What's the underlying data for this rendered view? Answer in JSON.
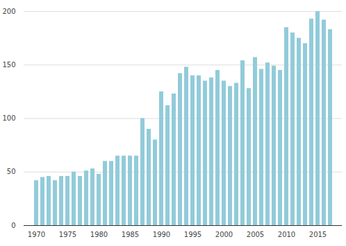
{
  "chart_data": {
    "type": "bar",
    "categories": [
      1970,
      1971,
      1972,
      1973,
      1974,
      1975,
      1976,
      1977,
      1978,
      1979,
      1980,
      1981,
      1982,
      1983,
      1984,
      1985,
      1986,
      1987,
      1988,
      1989,
      1990,
      1991,
      1992,
      1993,
      1994,
      1995,
      1996,
      1997,
      1998,
      1999,
      2000,
      2001,
      2002,
      2003,
      2004,
      2005,
      2006,
      2007,
      2008,
      2009,
      2010,
      2011,
      2012,
      2013,
      2014,
      2015,
      2016,
      2017
    ],
    "values": [
      42,
      45,
      46,
      42,
      46,
      46,
      50,
      46,
      51,
      53,
      48,
      60,
      60,
      65,
      65,
      65,
      65,
      100,
      90,
      80,
      125,
      112,
      123,
      142,
      148,
      140,
      140,
      135,
      138,
      145,
      135,
      130,
      133,
      154,
      128,
      157,
      146,
      152,
      149,
      145,
      185,
      180,
      175,
      170,
      193,
      200,
      192,
      183
    ],
    "color": "#92cbda",
    "xticks": [
      1970,
      1975,
      1980,
      1985,
      1990,
      1995,
      2000,
      2005,
      2010,
      2015
    ],
    "ylim": [
      0,
      200
    ],
    "yticks": [
      0,
      50,
      100,
      150,
      200
    ],
    "grid": true
  }
}
